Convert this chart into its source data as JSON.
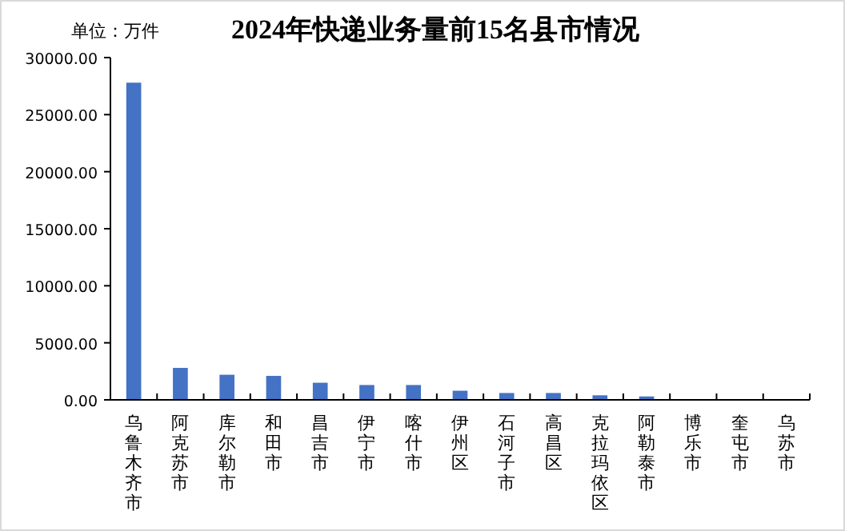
{
  "chart_data": {
    "type": "bar",
    "title": "2024年快递业务量前15名县市情况",
    "ylabel": "单位：万件",
    "categories": [
      "乌鲁木齐市",
      "阿克苏市",
      "库尔勒市",
      "和田市",
      "昌吉市",
      "伊宁市",
      "喀什市",
      "伊州区",
      "石河子市",
      "高昌区",
      "克拉玛依区",
      "阿勒泰市",
      "博乐市",
      "奎屯市",
      "乌苏市"
    ],
    "values": [
      27800,
      2800,
      2200,
      2100,
      1500,
      1300,
      1300,
      800,
      600,
      600,
      400,
      300,
      null,
      null,
      null
    ],
    "color": "#4472c4",
    "ylim": [
      0,
      30000
    ],
    "yticks": [
      {
        "value": 0,
        "label": "0.00"
      },
      {
        "value": 5000,
        "label": "5000.00"
      },
      {
        "value": 10000,
        "label": "10000.00"
      },
      {
        "value": 15000,
        "label": "15000.00"
      },
      {
        "value": 20000,
        "label": "20000.00"
      },
      {
        "value": 25000,
        "label": "25000.00"
      },
      {
        "value": 30000,
        "label": "30000.00"
      }
    ],
    "grid": false
  }
}
